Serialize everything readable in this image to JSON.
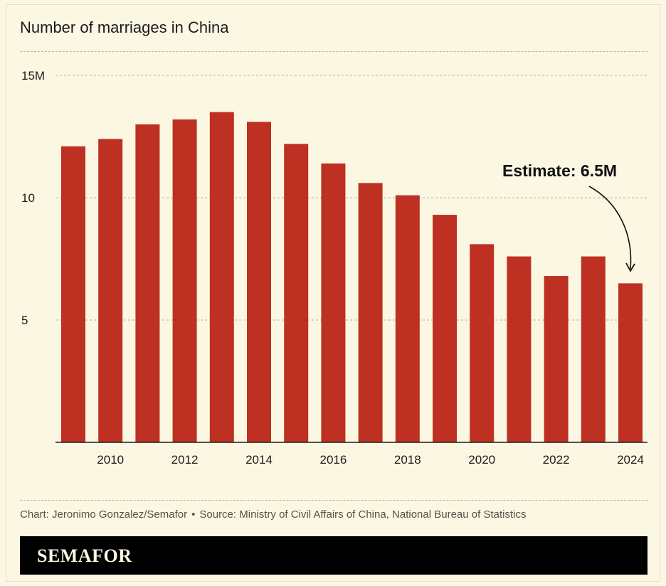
{
  "title": "Number of marriages in China",
  "chart_data": {
    "type": "bar",
    "categories": [
      "2009",
      "2010",
      "2011",
      "2012",
      "2013",
      "2014",
      "2015",
      "2016",
      "2017",
      "2018",
      "2019",
      "2020",
      "2021",
      "2022",
      "2023",
      "2024"
    ],
    "values": [
      12.1,
      12.4,
      13.0,
      13.2,
      13.5,
      13.1,
      12.2,
      11.4,
      10.6,
      10.1,
      9.3,
      8.1,
      7.6,
      6.8,
      7.6,
      6.5
    ],
    "tick_labels_x": [
      "2010",
      "2012",
      "2014",
      "2016",
      "2018",
      "2020",
      "2022",
      "2024"
    ],
    "y_ticks": [
      5,
      10,
      15
    ],
    "y_tick_labels": [
      "5",
      "10",
      "15M"
    ],
    "ylim": [
      0,
      15
    ],
    "grid": true,
    "bar_color": "#bd3022",
    "annotation": {
      "text": "Estimate: 6.5M",
      "target": "2024"
    }
  },
  "footer": {
    "credit": "Chart: Jeronimo Gonzalez/Semafor",
    "separator": "•",
    "source": "Source: Ministry of Civil Affairs of China, National Bureau of Statistics"
  },
  "brand": "SEMAFOR"
}
